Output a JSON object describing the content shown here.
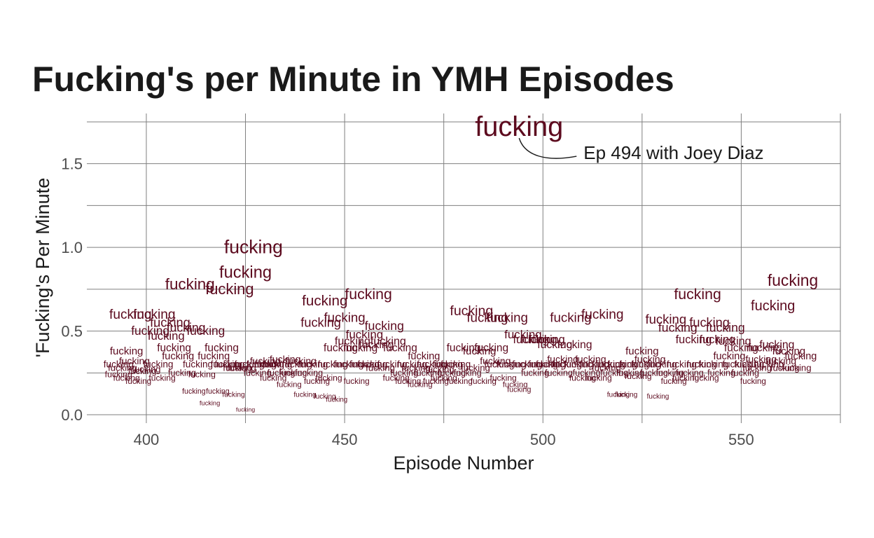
{
  "chart_data": {
    "type": "scatter",
    "title": "Fucking's per Minute in YMH Episodes",
    "xlabel": "Episode Number",
    "ylabel": "'Fucking's Per Minute",
    "point_label": "fucking",
    "xlim": [
      385,
      575
    ],
    "ylim": [
      -0.05,
      1.8
    ],
    "xticks": [
      400,
      450,
      500,
      550
    ],
    "xtick_labels": [
      "400",
      "450",
      "500",
      "550"
    ],
    "yticks": [
      0.0,
      0.5,
      1.0,
      1.5
    ],
    "ytick_labels": [
      "0.0",
      "0.5",
      "1.0",
      "1.5"
    ],
    "grid": true,
    "text_color": "#5c0a1e",
    "annotation": {
      "text": "Ep 494 with Joey Diaz",
      "x": 494,
      "y": 1.72
    },
    "points": [
      {
        "x": 393,
        "y": 0.3
      },
      {
        "x": 393,
        "y": 0.24
      },
      {
        "x": 394,
        "y": 0.28
      },
      {
        "x": 395,
        "y": 0.38
      },
      {
        "x": 395,
        "y": 0.22
      },
      {
        "x": 396,
        "y": 0.6
      },
      {
        "x": 397,
        "y": 0.32
      },
      {
        "x": 398,
        "y": 0.2
      },
      {
        "x": 399,
        "y": 0.26
      },
      {
        "x": 400,
        "y": 0.27
      },
      {
        "x": 401,
        "y": 0.5
      },
      {
        "x": 402,
        "y": 0.6
      },
      {
        "x": 403,
        "y": 0.3
      },
      {
        "x": 404,
        "y": 0.22
      },
      {
        "x": 405,
        "y": 0.47
      },
      {
        "x": 406,
        "y": 0.55
      },
      {
        "x": 407,
        "y": 0.4
      },
      {
        "x": 408,
        "y": 0.35
      },
      {
        "x": 409,
        "y": 0.25
      },
      {
        "x": 410,
        "y": 0.52
      },
      {
        "x": 411,
        "y": 0.78
      },
      {
        "x": 412,
        "y": 0.14
      },
      {
        "x": 413,
        "y": 0.3
      },
      {
        "x": 414,
        "y": 0.24
      },
      {
        "x": 415,
        "y": 0.5
      },
      {
        "x": 416,
        "y": 0.07
      },
      {
        "x": 417,
        "y": 0.35
      },
      {
        "x": 418,
        "y": 0.14
      },
      {
        "x": 419,
        "y": 0.4
      },
      {
        "x": 420,
        "y": 0.3
      },
      {
        "x": 421,
        "y": 0.75
      },
      {
        "x": 421,
        "y": 0.3
      },
      {
        "x": 422,
        "y": 0.12
      },
      {
        "x": 423,
        "y": 0.28
      },
      {
        "x": 424,
        "y": 0.28
      },
      {
        "x": 425,
        "y": 0.85
      },
      {
        "x": 425,
        "y": 0.03
      },
      {
        "x": 426,
        "y": 0.3
      },
      {
        "x": 427,
        "y": 1.0
      },
      {
        "x": 428,
        "y": 0.25
      },
      {
        "x": 429,
        "y": 0.3
      },
      {
        "x": 430,
        "y": 0.32
      },
      {
        "x": 431,
        "y": 0.3
      },
      {
        "x": 432,
        "y": 0.22
      },
      {
        "x": 433,
        "y": 0.3
      },
      {
        "x": 434,
        "y": 0.25
      },
      {
        "x": 435,
        "y": 0.33
      },
      {
        "x": 436,
        "y": 0.18
      },
      {
        "x": 437,
        "y": 0.25
      },
      {
        "x": 438,
        "y": 0.3
      },
      {
        "x": 439,
        "y": 0.32
      },
      {
        "x": 440,
        "y": 0.12
      },
      {
        "x": 441,
        "y": 0.25
      },
      {
        "x": 442,
        "y": 0.3
      },
      {
        "x": 443,
        "y": 0.2
      },
      {
        "x": 444,
        "y": 0.55
      },
      {
        "x": 445,
        "y": 0.68
      },
      {
        "x": 445,
        "y": 0.11
      },
      {
        "x": 446,
        "y": 0.22
      },
      {
        "x": 447,
        "y": 0.3
      },
      {
        "x": 448,
        "y": 0.09
      },
      {
        "x": 449,
        "y": 0.4
      },
      {
        "x": 450,
        "y": 0.58
      },
      {
        "x": 451,
        "y": 0.3
      },
      {
        "x": 452,
        "y": 0.44
      },
      {
        "x": 453,
        "y": 0.2
      },
      {
        "x": 454,
        "y": 0.4
      },
      {
        "x": 455,
        "y": 0.3
      },
      {
        "x": 455,
        "y": 0.48
      },
      {
        "x": 456,
        "y": 0.72
      },
      {
        "x": 457,
        "y": 0.3
      },
      {
        "x": 458,
        "y": 0.42
      },
      {
        "x": 459,
        "y": 0.28
      },
      {
        "x": 460,
        "y": 0.53
      },
      {
        "x": 461,
        "y": 0.44
      },
      {
        "x": 462,
        "y": 0.3
      },
      {
        "x": 463,
        "y": 0.22
      },
      {
        "x": 464,
        "y": 0.4
      },
      {
        "x": 465,
        "y": 0.25
      },
      {
        "x": 466,
        "y": 0.2
      },
      {
        "x": 467,
        "y": 0.3
      },
      {
        "x": 468,
        "y": 0.28
      },
      {
        "x": 469,
        "y": 0.18
      },
      {
        "x": 470,
        "y": 0.35
      },
      {
        "x": 471,
        "y": 0.25
      },
      {
        "x": 472,
        "y": 0.3
      },
      {
        "x": 473,
        "y": 0.2
      },
      {
        "x": 474,
        "y": 0.27
      },
      {
        "x": 475,
        "y": 0.22
      },
      {
        "x": 476,
        "y": 0.3
      },
      {
        "x": 477,
        "y": 0.25
      },
      {
        "x": 478,
        "y": 0.3
      },
      {
        "x": 479,
        "y": 0.2
      },
      {
        "x": 480,
        "y": 0.4
      },
      {
        "x": 481,
        "y": 0.25
      },
      {
        "x": 482,
        "y": 0.62
      },
      {
        "x": 483,
        "y": 0.28
      },
      {
        "x": 484,
        "y": 0.38
      },
      {
        "x": 485,
        "y": 0.2
      },
      {
        "x": 486,
        "y": 0.58
      },
      {
        "x": 487,
        "y": 0.4
      },
      {
        "x": 488,
        "y": 0.32
      },
      {
        "x": 489,
        "y": 0.3
      },
      {
        "x": 490,
        "y": 0.22
      },
      {
        "x": 491,
        "y": 0.58
      },
      {
        "x": 492,
        "y": 0.3
      },
      {
        "x": 493,
        "y": 0.18
      },
      {
        "x": 494,
        "y": 1.72
      },
      {
        "x": 494,
        "y": 0.15
      },
      {
        "x": 495,
        "y": 0.48
      },
      {
        "x": 496,
        "y": 0.3
      },
      {
        "x": 497,
        "y": 0.45
      },
      {
        "x": 498,
        "y": 0.25
      },
      {
        "x": 499,
        "y": 0.45
      },
      {
        "x": 500,
        "y": 0.3
      },
      {
        "x": 501,
        "y": 0.45
      },
      {
        "x": 502,
        "y": 0.3
      },
      {
        "x": 503,
        "y": 0.42
      },
      {
        "x": 504,
        "y": 0.25
      },
      {
        "x": 505,
        "y": 0.33
      },
      {
        "x": 506,
        "y": 0.3
      },
      {
        "x": 507,
        "y": 0.58
      },
      {
        "x": 508,
        "y": 0.42
      },
      {
        "x": 509,
        "y": 0.3
      },
      {
        "x": 510,
        "y": 0.22
      },
      {
        "x": 511,
        "y": 0.25
      },
      {
        "x": 512,
        "y": 0.33
      },
      {
        "x": 513,
        "y": 0.3
      },
      {
        "x": 514,
        "y": 0.22
      },
      {
        "x": 515,
        "y": 0.6
      },
      {
        "x": 516,
        "y": 0.28
      },
      {
        "x": 517,
        "y": 0.3
      },
      {
        "x": 518,
        "y": 0.25
      },
      {
        "x": 519,
        "y": 0.12
      },
      {
        "x": 520,
        "y": 0.3
      },
      {
        "x": 521,
        "y": 0.12
      },
      {
        "x": 522,
        "y": 0.25
      },
      {
        "x": 523,
        "y": 0.3
      },
      {
        "x": 524,
        "y": 0.23
      },
      {
        "x": 525,
        "y": 0.38
      },
      {
        "x": 526,
        "y": 0.3
      },
      {
        "x": 527,
        "y": 0.33
      },
      {
        "x": 528,
        "y": 0.25
      },
      {
        "x": 529,
        "y": 0.11
      },
      {
        "x": 530,
        "y": 0.3
      },
      {
        "x": 531,
        "y": 0.57
      },
      {
        "x": 532,
        "y": 0.25
      },
      {
        "x": 533,
        "y": 0.2
      },
      {
        "x": 534,
        "y": 0.52
      },
      {
        "x": 535,
        "y": 0.3
      },
      {
        "x": 536,
        "y": 0.22
      },
      {
        "x": 537,
        "y": 0.25
      },
      {
        "x": 538,
        "y": 0.45
      },
      {
        "x": 539,
        "y": 0.72
      },
      {
        "x": 540,
        "y": 0.3
      },
      {
        "x": 541,
        "y": 0.22
      },
      {
        "x": 542,
        "y": 0.55
      },
      {
        "x": 543,
        "y": 0.3
      },
      {
        "x": 544,
        "y": 0.45
      },
      {
        "x": 545,
        "y": 0.25
      },
      {
        "x": 546,
        "y": 0.52
      },
      {
        "x": 547,
        "y": 0.35
      },
      {
        "x": 548,
        "y": 0.44
      },
      {
        "x": 549,
        "y": 0.3
      },
      {
        "x": 550,
        "y": 0.4
      },
      {
        "x": 551,
        "y": 0.25
      },
      {
        "x": 552,
        "y": 0.3
      },
      {
        "x": 553,
        "y": 0.2
      },
      {
        "x": 554,
        "y": 0.28
      },
      {
        "x": 555,
        "y": 0.33
      },
      {
        "x": 556,
        "y": 0.4
      },
      {
        "x": 557,
        "y": 0.3
      },
      {
        "x": 558,
        "y": 0.65
      },
      {
        "x": 559,
        "y": 0.42
      },
      {
        "x": 560,
        "y": 0.32
      },
      {
        "x": 561,
        "y": 0.28
      },
      {
        "x": 562,
        "y": 0.38
      },
      {
        "x": 563,
        "y": 0.8
      },
      {
        "x": 564,
        "y": 0.28
      },
      {
        "x": 565,
        "y": 0.35
      }
    ]
  }
}
